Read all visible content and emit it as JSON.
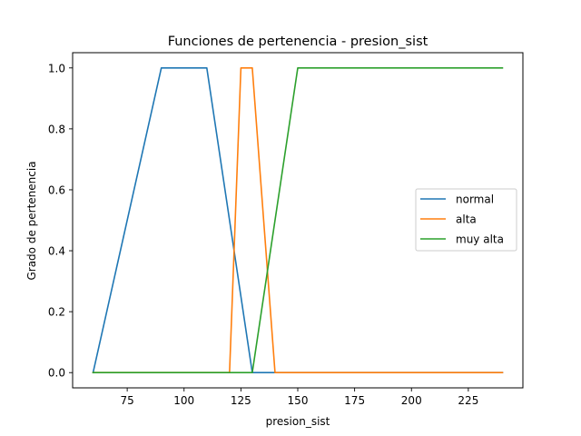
{
  "chart_data": {
    "type": "line",
    "title": "Funciones de pertenencia - presion_sist",
    "xlabel": "presion_sist",
    "ylabel": "Grado de pertenencia",
    "xlim": [
      51,
      249
    ],
    "ylim": [
      -0.05,
      1.05
    ],
    "xticks": [
      75,
      100,
      125,
      150,
      175,
      200,
      225
    ],
    "yticks": [
      0.0,
      0.2,
      0.4,
      0.6,
      0.8,
      1.0
    ],
    "ytick_labels": [
      "0.0",
      "0.2",
      "0.4",
      "0.6",
      "0.8",
      "1.0"
    ],
    "grid": false,
    "legend_position": "center-right",
    "series": [
      {
        "name": "normal",
        "color": "#1f77b4",
        "x": [
          60,
          90,
          110,
          130,
          240
        ],
        "y": [
          0,
          1,
          1,
          0,
          0
        ]
      },
      {
        "name": "alta",
        "color": "#ff7f0e",
        "x": [
          60,
          120,
          125,
          130,
          140,
          240
        ],
        "y": [
          0,
          0,
          1,
          1,
          0,
          0
        ]
      },
      {
        "name": "muy alta",
        "color": "#2ca02c",
        "x": [
          60,
          130,
          150,
          240
        ],
        "y": [
          0,
          0,
          1,
          1
        ]
      }
    ]
  }
}
